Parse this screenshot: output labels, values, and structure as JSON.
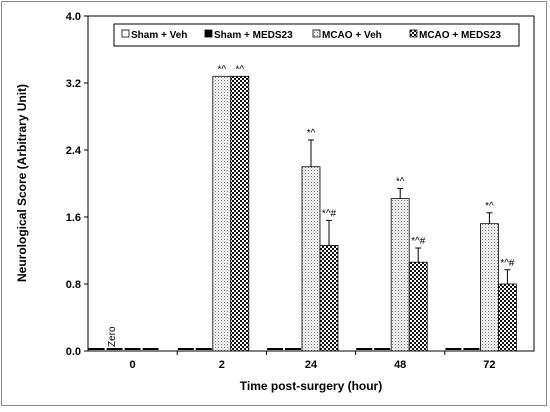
{
  "chart_data": {
    "type": "bar",
    "title": "",
    "xlabel": "Time post-surgery (hour)",
    "ylabel": "Neurological Score (Arbitrary Unit)",
    "ylim": [
      0,
      4.0
    ],
    "yticks": [
      "0.0",
      "0.8",
      "1.6",
      "2.4",
      "3.2",
      "4.0"
    ],
    "categories": [
      "0",
      "2",
      "24",
      "48",
      "72"
    ],
    "zero_label": "Zero",
    "legend_position": "top",
    "grid": false,
    "series": [
      {
        "name": "Sham + Veh",
        "pattern": "white",
        "values": [
          0.0,
          0.0,
          0.0,
          0.0,
          0.0
        ],
        "errors": [
          0,
          0,
          0,
          0,
          0
        ],
        "annotations": [
          "",
          "",
          "",
          "",
          ""
        ]
      },
      {
        "name": "Sham + MEDS23",
        "pattern": "black",
        "values": [
          0.0,
          0.0,
          0.0,
          0.0,
          0.0
        ],
        "errors": [
          0,
          0,
          0,
          0,
          0
        ],
        "annotations": [
          "",
          "",
          "",
          "",
          ""
        ]
      },
      {
        "name": "MCAO + Veh",
        "pattern": "dots",
        "values": [
          0.0,
          3.28,
          2.2,
          1.82,
          1.52
        ],
        "errors": [
          0,
          0,
          0.32,
          0.12,
          0.13
        ],
        "annotations": [
          "",
          "*^",
          "*^",
          "*^",
          "*^"
        ]
      },
      {
        "name": "MCAO + MEDS23",
        "pattern": "checker",
        "values": [
          0.0,
          3.28,
          1.26,
          1.06,
          0.8
        ],
        "errors": [
          0,
          0,
          0.3,
          0.17,
          0.17
        ],
        "annotations": [
          "",
          "*^",
          "*^#",
          "*^#",
          "*^#"
        ]
      }
    ]
  }
}
